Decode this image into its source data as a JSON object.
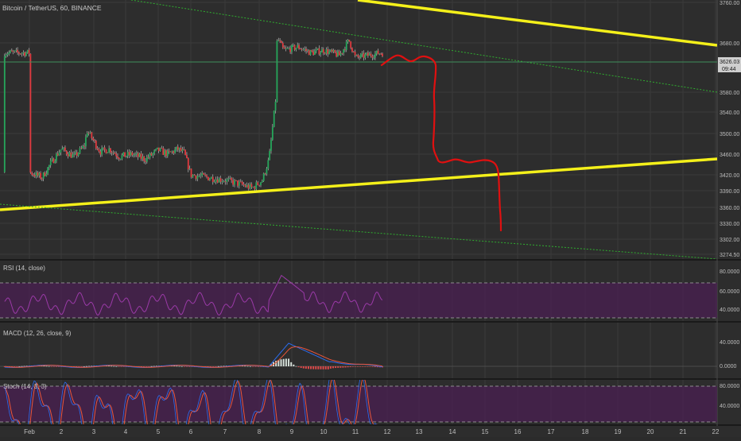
{
  "app": {
    "title": "Bitcoin / TetherUS, 60, BINANCE",
    "colors": {
      "background": "#2d2d2d",
      "panel_sep": "#1a1a1a",
      "grid": "#3a3a3a",
      "text": "#bdbdbd",
      "up": "#26a65b",
      "down": "#e0393e",
      "wick": "#cfcfcf",
      "yellow": "#f4f01a",
      "trend_green": "#2fae2f",
      "current_price_line": "#3f8f5a",
      "price_badge_bg": "#cfcfcf",
      "drawing_red": "#e01010",
      "rsi_line": "#9b3aa8",
      "rsi_band": "#4a1f52",
      "macd_line": "#2b6cf0",
      "signal_line": "#e8553b",
      "stoch_k": "#2b6cf0",
      "stoch_d": "#e8553b"
    }
  },
  "x_axis": {
    "labels": [
      "Feb",
      "2",
      "3",
      "4",
      "5",
      "6",
      "7",
      "8",
      "9",
      "10",
      "11",
      "12",
      "13",
      "14",
      "15",
      "16",
      "17",
      "18",
      "19",
      "20",
      "21",
      "22"
    ]
  },
  "price_axis": {
    "ticks": [
      "3760.00",
      "3680.00",
      "3580.00",
      "3540.00",
      "3500.00",
      "3460.00",
      "3420.00",
      "3390.00",
      "3360.00",
      "3330.00",
      "3302.00",
      "3274.50"
    ],
    "current_price": "3626.03",
    "countdown": "09:44"
  },
  "indicators": {
    "rsi": {
      "label": "RSI (14, close)",
      "ticks": [
        "80.0000",
        "60.0000",
        "40.0000"
      ]
    },
    "macd": {
      "label": "MACD (12, 26, close, 9)",
      "ticks": [
        "40.0000",
        "0.0000"
      ]
    },
    "stoch": {
      "label": "Stoch (14, 3, 3)",
      "ticks": [
        "80.0000",
        "40.0000"
      ]
    }
  },
  "chart_data": {
    "type": "candlestick",
    "title": "Bitcoin / TetherUS, 60, BINANCE",
    "x": [
      "Feb",
      "2",
      "3",
      "4",
      "5",
      "6",
      "7",
      "8",
      "9",
      "10",
      "11"
    ],
    "price_close_approx": [
      3420,
      3470,
      3455,
      3460,
      3465,
      3420,
      3410,
      3670,
      3630,
      3620,
      3625
    ],
    "ylim": [
      3274.5,
      3760
    ],
    "grid": true
  }
}
